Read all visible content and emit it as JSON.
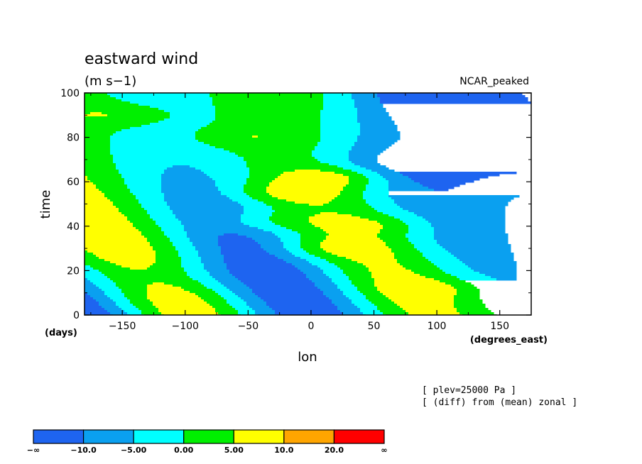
{
  "chart_data": {
    "type": "heatmap",
    "title": "eastward wind",
    "units": "(m s−1)",
    "dataset": "NCAR_peaked",
    "xlabel": "lon",
    "xunits": "(degrees_east)",
    "ylabel": "time",
    "yunits": "(days)",
    "xlim": [
      -180,
      175
    ],
    "ylim": [
      0,
      100
    ],
    "xticks": [
      -150,
      -100,
      -50,
      0,
      50,
      100,
      150
    ],
    "xtick_labels": [
      "−150",
      "−100",
      "−50",
      "0",
      "50",
      "100",
      "150"
    ],
    "yticks": [
      0,
      20,
      40,
      60,
      80,
      100
    ],
    "ytick_labels": [
      "0",
      "20",
      "40",
      "60",
      "80",
      "100"
    ],
    "notes": [
      "[ plev=25000 Pa ]",
      "[ (diff) from (mean) zonal ]"
    ],
    "colorbar": {
      "levels": [
        -10,
        -5,
        0,
        5,
        10,
        20
      ],
      "colors": [
        "#1e64f0",
        "#0aa0f0",
        "#00ffff",
        "#00f000",
        "#ffff00",
        "#ffa500",
        "#ff0000"
      ],
      "labels": [
        "−∞",
        "−10.0",
        "−5.00",
        "0.00",
        "5.00",
        "10.0",
        "20.0",
        "∞"
      ]
    }
  }
}
